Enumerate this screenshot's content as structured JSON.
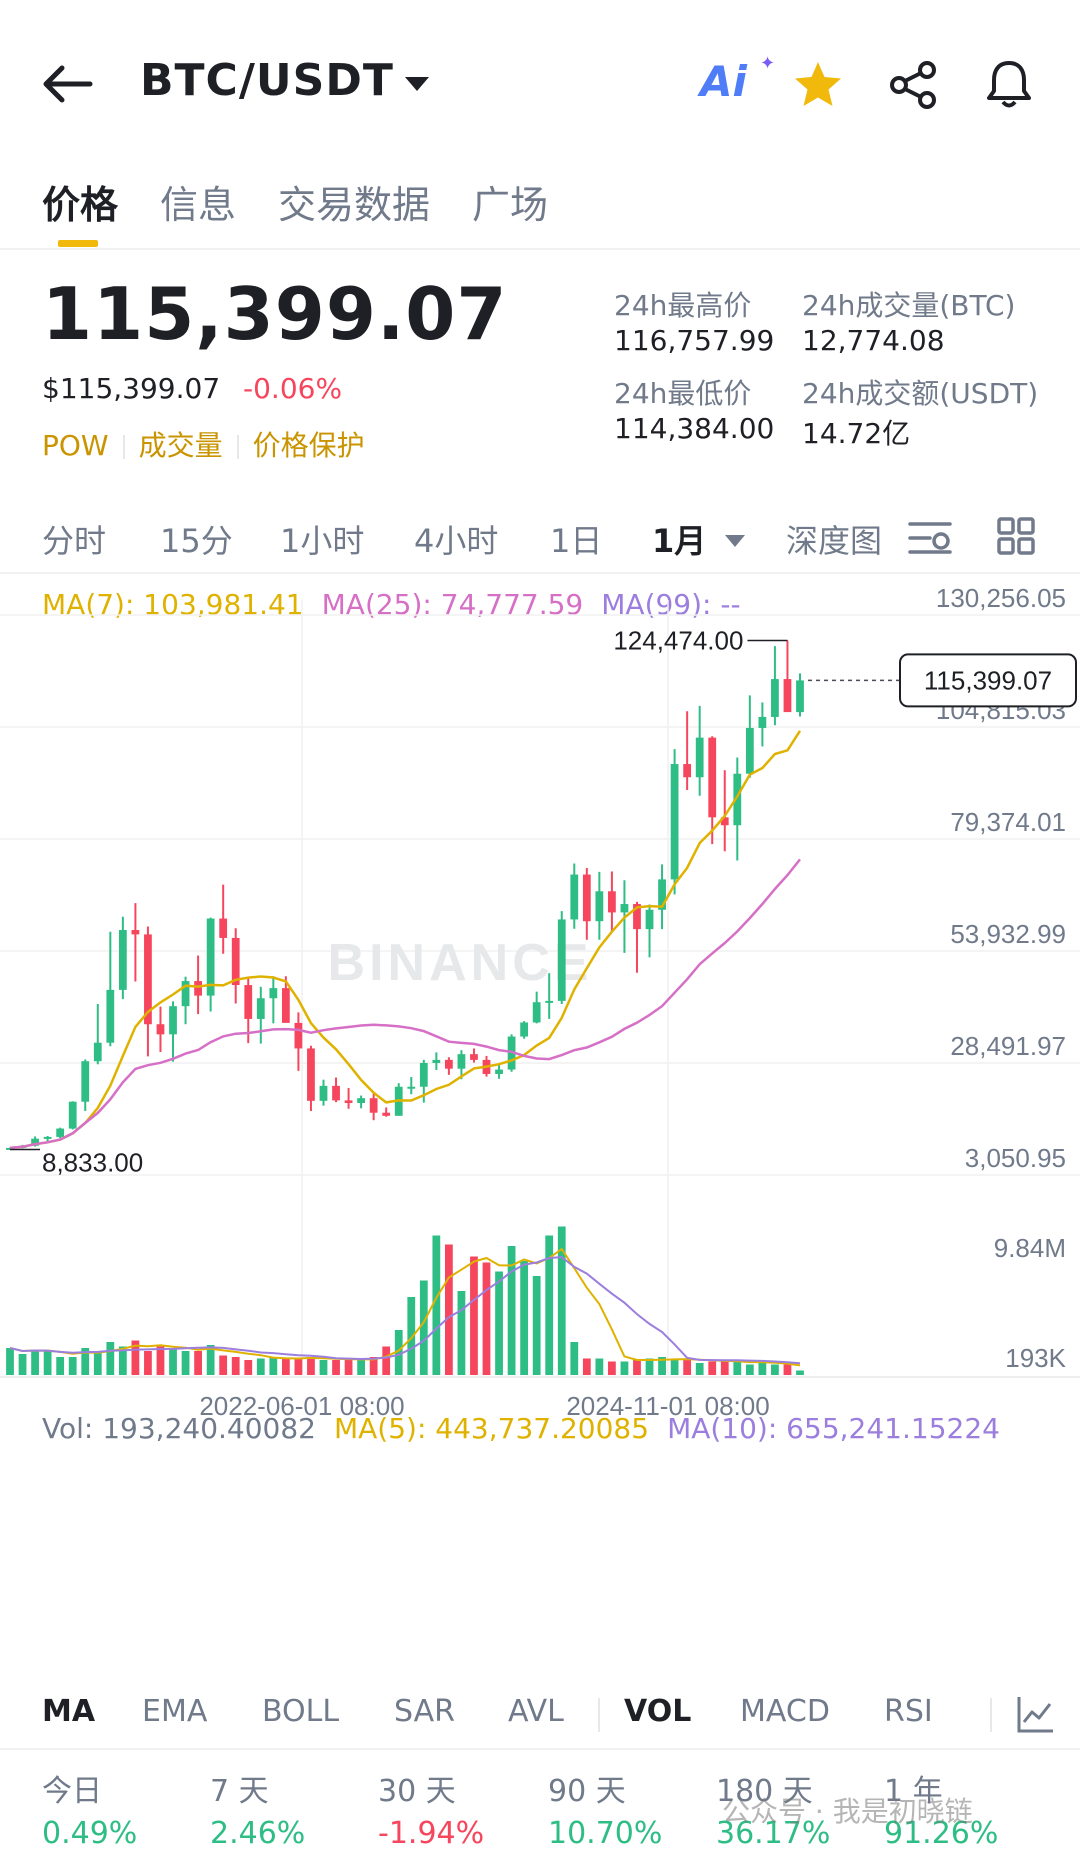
{
  "header": {
    "pair": "BTC/USDT",
    "icons": [
      "back-arrow-icon",
      "dropdown-caret-icon",
      "ai-icon",
      "star-icon",
      "share-icon",
      "bell-icon"
    ],
    "ai_label": "Ai",
    "star_color": "#F0B90B"
  },
  "tabs": [
    {
      "label": "价格",
      "active": true
    },
    {
      "label": "信息",
      "active": false
    },
    {
      "label": "交易数据",
      "active": false
    },
    {
      "label": "广场",
      "active": false
    }
  ],
  "price": {
    "last": "115,399.07",
    "usd": "$115,399.07",
    "change": "-0.06%",
    "tags": [
      "POW",
      "成交量",
      "价格保护"
    ]
  },
  "stats": {
    "high_label": "24h最高价",
    "high_value": "116,757.99",
    "vol_btc_label": "24h成交量(BTC)",
    "vol_btc_value": "12,774.08",
    "low_label": "24h最低价",
    "low_value": "114,384.00",
    "vol_usdt_label": "24h成交额(USDT)",
    "vol_usdt_value": "14.72亿"
  },
  "intervals": [
    {
      "label": "分时",
      "active": false
    },
    {
      "label": "15分",
      "active": false
    },
    {
      "label": "1小时",
      "active": false
    },
    {
      "label": "4小时",
      "active": false
    },
    {
      "label": "1日",
      "active": false
    },
    {
      "label": "1月",
      "active": true
    },
    {
      "label": "深度图",
      "active": false
    }
  ],
  "ma_legend": {
    "ma7": "MA(7): 103,981.41",
    "ma25": "MA(25): 74,777.59",
    "ma99": "MA(99): --"
  },
  "vol_legend": {
    "vol": "Vol: 193,240.40082",
    "ma5": "MA(5): 443,737.20085",
    "ma10": "MA(10): 655,241.15224"
  },
  "chart_data": {
    "type": "candlestick",
    "interval": "1M",
    "price_axis_ticks": [
      "130,256.05",
      "104,815.03",
      "79,374.01",
      "53,932.99",
      "28,491.97",
      "3,050.95"
    ],
    "volume_axis_ticks": [
      "9.84M",
      "193K"
    ],
    "x_ticks": [
      "2022-06-01 08:00",
      "2024-11-01 08:00"
    ],
    "ylim": [
      3050.95,
      130256.05
    ],
    "annotations": {
      "high": "124,474.00",
      "low": "8,833.00",
      "current": "115,399.07"
    },
    "high_value": 124474.0,
    "low_value": 8833.0,
    "current_value": 115399.07,
    "colors": {
      "up": "#2EBD85",
      "down": "#F6465D",
      "ma7": "#E0B200",
      "ma25": "#D66FC6",
      "vol_ma10": "#9B7EDE"
    },
    "candles": [
      [
        9000,
        9300,
        8900,
        9200
      ],
      [
        9200,
        9900,
        9100,
        9700
      ],
      [
        9700,
        11800,
        9500,
        11300
      ],
      [
        11300,
        11900,
        10700,
        11700
      ],
      [
        11700,
        13800,
        11400,
        13600
      ],
      [
        13600,
        19800,
        13400,
        19700
      ],
      [
        19700,
        29300,
        17600,
        28900
      ],
      [
        28900,
        41900,
        28200,
        33100
      ],
      [
        33100,
        58300,
        32300,
        45100
      ],
      [
        45100,
        61700,
        43000,
        58700
      ],
      [
        58700,
        64800,
        47000,
        57700
      ],
      [
        57700,
        59500,
        30000,
        37300
      ],
      [
        37300,
        41300,
        31000,
        35000
      ],
      [
        35000,
        42500,
        28800,
        41400
      ],
      [
        41400,
        48100,
        37300,
        47100
      ],
      [
        47100,
        52900,
        39600,
        43800
      ],
      [
        43800,
        61500,
        40200,
        61300
      ],
      [
        61300,
        69000,
        53300,
        56900
      ],
      [
        56900,
        59100,
        42000,
        46200
      ],
      [
        46200,
        48000,
        33000,
        38500
      ],
      [
        38500,
        45800,
        32900,
        43200
      ],
      [
        43200,
        48200,
        37500,
        45500
      ],
      [
        45500,
        48200,
        38000,
        37600
      ],
      [
        37600,
        40000,
        26700,
        31800
      ],
      [
        31800,
        32400,
        17600,
        19900
      ],
      [
        19900,
        24700,
        18800,
        23300
      ],
      [
        23300,
        25200,
        19600,
        20000
      ],
      [
        20000,
        22800,
        18100,
        19400
      ],
      [
        19400,
        21100,
        18200,
        20500
      ],
      [
        20500,
        21500,
        15500,
        17200
      ],
      [
        17200,
        18400,
        16300,
        16500
      ],
      [
        16500,
        23900,
        16500,
        23100
      ],
      [
        23100,
        25300,
        21400,
        23100
      ],
      [
        23100,
        29200,
        19500,
        28500
      ],
      [
        28500,
        30900,
        26900,
        29200
      ],
      [
        29200,
        29800,
        25800,
        27200
      ],
      [
        27200,
        31400,
        24800,
        30500
      ],
      [
        30500,
        31800,
        28600,
        29200
      ],
      [
        29200,
        30100,
        25400,
        26000
      ],
      [
        26000,
        28100,
        24900,
        27000
      ],
      [
        27000,
        35000,
        26500,
        34500
      ],
      [
        34500,
        38000,
        34000,
        37700
      ],
      [
        37700,
        44700,
        37500,
        42300
      ],
      [
        42300,
        48900,
        38500,
        42600
      ],
      [
        42600,
        63000,
        41900,
        61100
      ],
      [
        61100,
        73800,
        59000,
        71300
      ],
      [
        71300,
        72800,
        56500,
        60700
      ],
      [
        60700,
        71900,
        56500,
        67500
      ],
      [
        67500,
        72000,
        58400,
        62700
      ],
      [
        62700,
        70000,
        53500,
        64600
      ],
      [
        64600,
        65100,
        49000,
        58900
      ],
      [
        58900,
        64500,
        52500,
        63300
      ],
      [
        63300,
        73600,
        58900,
        70200
      ],
      [
        70200,
        99800,
        66800,
        96400
      ],
      [
        96400,
        108400,
        90500,
        93400
      ],
      [
        93400,
        109600,
        89200,
        102400
      ],
      [
        102400,
        102700,
        78200,
        84300
      ],
      [
        84300,
        95000,
        76600,
        82500
      ],
      [
        82500,
        97900,
        74500,
        94200
      ],
      [
        94200,
        112000,
        93300,
        104600
      ],
      [
        104600,
        110400,
        100400,
        107100
      ],
      [
        107100,
        123200,
        105200,
        115700
      ],
      [
        115700,
        124474,
        108700,
        108200
      ],
      [
        108200,
        117000,
        107200,
        115399
      ]
    ],
    "volume_relative": [
      0.18,
      0.14,
      0.17,
      0.16,
      0.12,
      0.12,
      0.18,
      0.16,
      0.22,
      0.19,
      0.23,
      0.16,
      0.19,
      0.17,
      0.16,
      0.16,
      0.2,
      0.13,
      0.12,
      0.1,
      0.11,
      0.12,
      0.11,
      0.11,
      0.12,
      0.1,
      0.1,
      0.1,
      0.1,
      0.12,
      0.19,
      0.3,
      0.52,
      0.63,
      0.93,
      0.87,
      0.56,
      0.79,
      0.75,
      0.69,
      0.86,
      0.76,
      0.66,
      0.93,
      0.99,
      0.22,
      0.11,
      0.11,
      0.09,
      0.09,
      0.1,
      0.11,
      0.12,
      0.1,
      0.1,
      0.08,
      0.09,
      0.1,
      0.09,
      0.07,
      0.08,
      0.07,
      0.07,
      0.03
    ]
  },
  "indicator_tabs": [
    {
      "label": "MA",
      "active": true
    },
    {
      "label": "EMA",
      "active": false
    },
    {
      "label": "BOLL",
      "active": false
    },
    {
      "label": "SAR",
      "active": false
    },
    {
      "label": "AVL",
      "active": false
    },
    {
      "label": "VOL",
      "active": true
    },
    {
      "label": "MACD",
      "active": false
    },
    {
      "label": "RSI",
      "active": false
    }
  ],
  "performance": [
    {
      "label": "今日",
      "value": "0.49%",
      "dir": "up"
    },
    {
      "label": "7 天",
      "value": "2.46%",
      "dir": "up"
    },
    {
      "label": "30 天",
      "value": "-1.94%",
      "dir": "down"
    },
    {
      "label": "90 天",
      "value": "10.70%",
      "dir": "up"
    },
    {
      "label": "180 天",
      "value": "36.17%",
      "dir": "up"
    },
    {
      "label": "1 年",
      "value": "91.26%",
      "dir": "up"
    }
  ],
  "watermark_text": "公众号 · 我是初晓链",
  "chart_watermark": "BINANCE"
}
